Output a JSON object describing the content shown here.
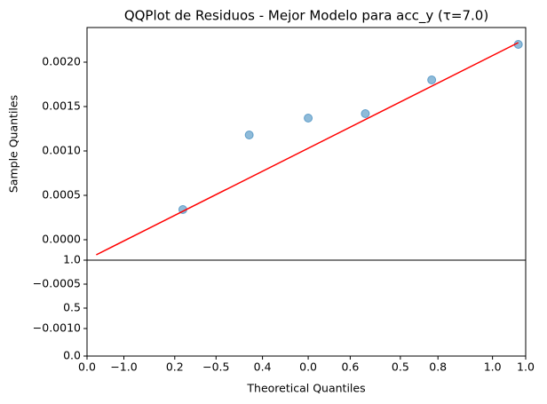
{
  "chart_data": [
    {
      "type": "scatter",
      "title": "QQPlot de Residuos - Mejor Modelo para acc_y (τ=7.0)",
      "xlabel": "Theoretical Quantiles",
      "ylabel": "Sample Quantiles",
      "xlim": [
        -1.2,
        1.18
      ],
      "ylim": [
        -0.00131,
        0.00239
      ],
      "xticks": [
        {
          "value": -1.0,
          "label": "−1.0"
        },
        {
          "value": -0.5,
          "label": "−0.5"
        },
        {
          "value": 0.0,
          "label": "0.0"
        },
        {
          "value": 0.5,
          "label": "0.5"
        },
        {
          "value": 1.0,
          "label": "1.0"
        }
      ],
      "yticks": [
        {
          "value": -0.001,
          "label": "−0.0010"
        },
        {
          "value": -0.0005,
          "label": "−0.0005"
        },
        {
          "value": 0.0,
          "label": "0.0000"
        },
        {
          "value": 0.0005,
          "label": "0.0005"
        },
        {
          "value": 0.001,
          "label": "0.0010"
        },
        {
          "value": 0.0015,
          "label": "0.0015"
        },
        {
          "value": 0.002,
          "label": "0.0020"
        }
      ],
      "series": [
        {
          "mode": "markers",
          "color": "#1f77b4",
          "x": [
            -0.68,
            -0.32,
            0.0,
            0.31,
            0.67,
            1.14
          ],
          "values": [
            0.00034,
            0.00118,
            0.00137,
            0.00142,
            0.0018,
            0.0022
          ]
        },
        {
          "mode": "line",
          "color": "#ff0000",
          "x": [
            -1.15,
            1.14
          ],
          "values": [
            -0.00017,
            0.00222
          ]
        }
      ]
    },
    {
      "type": "axes",
      "xlim": [
        0,
        1
      ],
      "ylim": [
        0,
        1
      ],
      "xticks": [
        {
          "value": 0,
          "label": "0.0"
        },
        {
          "value": 0.2,
          "label": "0.2"
        },
        {
          "value": 0.4,
          "label": "0.4"
        },
        {
          "value": 0.6,
          "label": "0.6"
        },
        {
          "value": 0.8,
          "label": "0.8"
        },
        {
          "value": 1,
          "label": "1.0"
        }
      ],
      "yticks": [
        {
          "value": 0,
          "label": "0.0"
        },
        {
          "value": 0.5,
          "label": "0.5"
        },
        {
          "value": 1,
          "label": "1.0"
        }
      ]
    }
  ]
}
